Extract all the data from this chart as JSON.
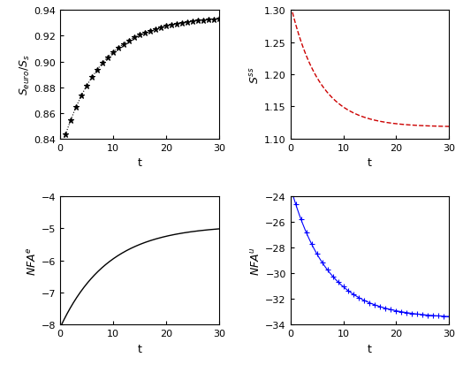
{
  "t_discrete": [
    1,
    2,
    3,
    4,
    5,
    6,
    7,
    8,
    9,
    10,
    11,
    12,
    13,
    14,
    15,
    16,
    17,
    18,
    19,
    20,
    21,
    22,
    23,
    24,
    25,
    26,
    27,
    28,
    29,
    30
  ],
  "panel1": {
    "ylabel": "$S_{euro}/S_s$",
    "xlabel": "t",
    "ylim": [
      0.84,
      0.94
    ],
    "xlim": [
      0,
      30
    ],
    "yticks": [
      0.84,
      0.86,
      0.88,
      0.9,
      0.92,
      0.94
    ],
    "xticks": [
      0,
      10,
      20,
      30
    ],
    "color": "black",
    "marker": "*",
    "linestyle": ":",
    "tau": 7.5,
    "y_init": 0.843,
    "y_final": 0.935
  },
  "panel2": {
    "ylabel": "$S^{ss}$",
    "xlabel": "t",
    "ylim": [
      1.1,
      1.3
    ],
    "xlim": [
      0,
      30
    ],
    "yticks": [
      1.1,
      1.15,
      1.2,
      1.25,
      1.3
    ],
    "xticks": [
      0,
      10,
      20,
      30
    ],
    "color": "#cc0000",
    "linestyle": "--",
    "tau": 5.5,
    "y_init": 1.278,
    "y_final": 1.118
  },
  "panel3": {
    "ylabel": "$NFA^e$",
    "xlabel": "t",
    "ylim": [
      -8,
      -4
    ],
    "xlim": [
      0,
      30
    ],
    "yticks": [
      -8,
      -7,
      -6,
      -5,
      -4
    ],
    "xticks": [
      0,
      10,
      20,
      30
    ],
    "color": "black",
    "linestyle": "-",
    "tau": 9.0,
    "y_init": -7.75,
    "y_final": -4.9
  },
  "panel4": {
    "ylabel": "$NFA^u$",
    "xlabel": "t",
    "ylim": [
      -34,
      -24
    ],
    "xlim": [
      0,
      30
    ],
    "yticks": [
      -34,
      -32,
      -30,
      -28,
      -26,
      -24
    ],
    "xticks": [
      0,
      10,
      20,
      30
    ],
    "color": "blue",
    "marker": "+",
    "linestyle": "-",
    "tau": 7.0,
    "y_init": -24.6,
    "y_final": -33.5
  }
}
